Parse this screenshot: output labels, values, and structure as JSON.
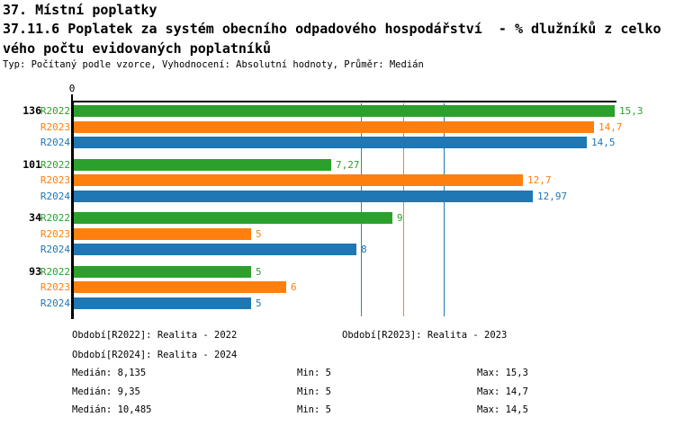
{
  "header": {
    "line1": "37. Místní poplatky",
    "line2": "37.11.6 Poplatek za systém obecního odpadového hospodářství  - % dlužníků z celkového počtu evidovaných poplatníků",
    "meta": "Typ: Počítaný podle vzorce, Vyhodnocení: Absolutní hodnoty, Průměr: Medián"
  },
  "colors": {
    "r2022": "#2ca02c",
    "r2023": "#ff7f0e",
    "r2024": "#1f77b4",
    "axis": "#000000"
  },
  "chart_data": {
    "type": "bar",
    "orientation": "horizontal",
    "title": "37.11.6 Poplatek za systém obecního odpadového hospodářství  - % dlužníků z celkového počtu evidovaných poplatníků",
    "x_axis": {
      "min": 0,
      "max": 15.37,
      "origin_label": "0",
      "grid": false
    },
    "series_names": [
      "R2022",
      "R2023",
      "R2024"
    ],
    "groups": [
      {
        "label": "136",
        "bars": [
          {
            "series": "R2022",
            "value": 15.3,
            "display": "15,3"
          },
          {
            "series": "R2023",
            "value": 14.7,
            "display": "14,7"
          },
          {
            "series": "R2024",
            "value": 14.5,
            "display": "14,5"
          }
        ]
      },
      {
        "label": "101",
        "bars": [
          {
            "series": "R2022",
            "value": 7.27,
            "display": "7,27"
          },
          {
            "series": "R2023",
            "value": 12.7,
            "display": "12,7"
          },
          {
            "series": "R2024",
            "value": 12.97,
            "display": "12,97"
          }
        ]
      },
      {
        "label": "34",
        "bars": [
          {
            "series": "R2022",
            "value": 9,
            "display": "9"
          },
          {
            "series": "R2023",
            "value": 5,
            "display": "5"
          },
          {
            "series": "R2024",
            "value": 8,
            "display": "8"
          }
        ]
      },
      {
        "label": "93",
        "bars": [
          {
            "series": "R2022",
            "value": 5,
            "display": "5"
          },
          {
            "series": "R2023",
            "value": 6,
            "display": "6"
          },
          {
            "series": "R2024",
            "value": 5,
            "display": "5"
          }
        ]
      }
    ],
    "reference_lines": [
      {
        "series": "R2022",
        "value": 8.135
      },
      {
        "series": "R2023",
        "value": 9.35
      },
      {
        "series": "R2024",
        "value": 10.485
      }
    ],
    "legend_position": "bottom"
  },
  "legend": {
    "r2022": "Období[R2022]: Realita - 2022",
    "r2023": "Období[R2023]: Realita - 2023",
    "r2024": "Období[R2024]: Realita - 2024"
  },
  "stats": {
    "r2022": {
      "median": "Medián: 8,135",
      "min": "Min: 5",
      "max": "Max: 15,3"
    },
    "r2023": {
      "median": "Medián: 9,35",
      "min": "Min: 5",
      "max": "Max: 14,7"
    },
    "r2024": {
      "median": "Medián: 10,485",
      "min": "Min: 5",
      "max": "Max: 14,5"
    }
  }
}
